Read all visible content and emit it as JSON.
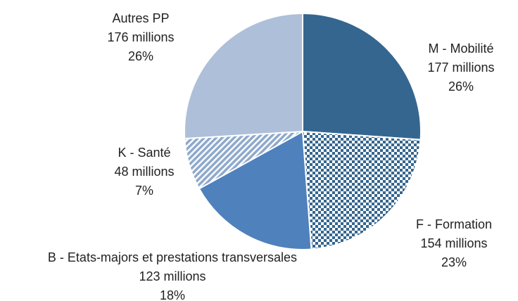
{
  "chart_data": {
    "type": "pie",
    "categories": [
      "M - Mobilité",
      "F - Formation",
      "B - Etats-majors et prestations transversales",
      "K - Santé",
      "Autres PP"
    ],
    "values": [
      177,
      154,
      123,
      48,
      176
    ],
    "value_labels": [
      "177 millions",
      "154 millions",
      "123 millions",
      "48 millions",
      "176 millions"
    ],
    "percents": [
      26,
      23,
      18,
      7,
      26
    ],
    "percent_labels": [
      "26%",
      "23%",
      "18%",
      "7%",
      "26%"
    ],
    "colors": [
      "#35668f",
      "#35668f",
      "#4f81bd",
      "#8ea9cc",
      "#aebfd9"
    ],
    "patterns": [
      null,
      "checker",
      null,
      "hatch",
      null
    ],
    "start_angle": 0,
    "direction": "clockwise"
  }
}
